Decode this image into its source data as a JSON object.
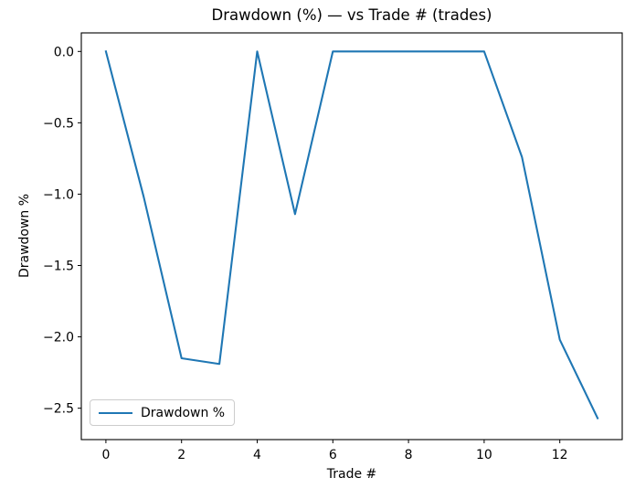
{
  "chart_data": {
    "type": "line",
    "title": "Drawdown (%) — vs Trade # (trades)",
    "xlabel": "Trade #",
    "ylabel": "Drawdown %",
    "grid": false,
    "x": [
      0,
      1,
      2,
      3,
      4,
      5,
      6,
      7,
      8,
      9,
      10,
      11,
      12,
      13
    ],
    "series": [
      {
        "name": "Drawdown %",
        "color": "#1f77b4",
        "values": [
          0.0,
          -1.02,
          -2.15,
          -2.19,
          0.0,
          -1.14,
          0.0,
          0.0,
          0.0,
          0.0,
          0.0,
          -0.74,
          -2.02,
          -2.57
        ]
      }
    ],
    "xlim": [
      -0.65,
      13.65
    ],
    "ylim": [
      -2.72,
      0.13
    ],
    "xticks": [
      {
        "v": 0,
        "label": "0"
      },
      {
        "v": 2,
        "label": "2"
      },
      {
        "v": 4,
        "label": "4"
      },
      {
        "v": 6,
        "label": "6"
      },
      {
        "v": 8,
        "label": "8"
      },
      {
        "v": 10,
        "label": "10"
      },
      {
        "v": 12,
        "label": "12"
      }
    ],
    "yticks": [
      {
        "v": 0.0,
        "label": "0.0"
      },
      {
        "v": -0.5,
        "label": "−0.5"
      },
      {
        "v": -1.0,
        "label": "−1.0"
      },
      {
        "v": -1.5,
        "label": "−1.5"
      },
      {
        "v": -2.0,
        "label": "−2.0"
      },
      {
        "v": -2.5,
        "label": "−2.5"
      }
    ],
    "legend": {
      "position": "lower left",
      "entries": [
        {
          "label": "Drawdown %",
          "color": "#1f77b4"
        }
      ]
    }
  },
  "colors": {
    "line": "#1f77b4",
    "frame": "#000000",
    "text": "#000000",
    "legend_border": "#cccccc"
  }
}
